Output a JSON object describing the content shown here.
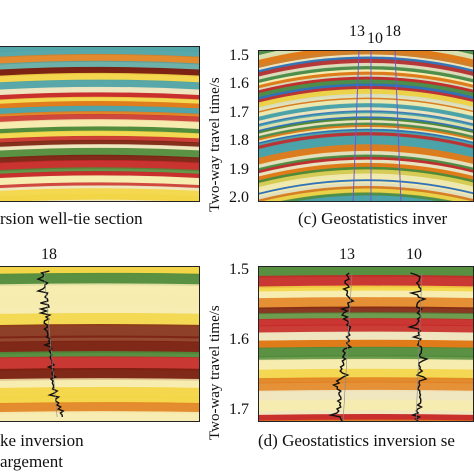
{
  "colors": {
    "red": "#c62828",
    "dark_red": "#7a1f10",
    "orange": "#e07b1a",
    "yellow": "#f3d544",
    "pale_yellow": "#f7ecb0",
    "green": "#4f8a3a",
    "teal": "#4ba3a9",
    "blue": "#2f6fb8",
    "cream": "#efe6c0",
    "log_black": "#111111",
    "well_line": "#6a5acd"
  },
  "panels": {
    "a": {
      "caption": "rsion well-tie section"
    },
    "b": {
      "well_label": "18",
      "caption_line1": "ke inversion",
      "caption_line2": "argement"
    },
    "c": {
      "caption": "(c) Geostatistics inver",
      "ylabel": "Two-way travel time/s",
      "yticks": [
        "1.5",
        "1.6",
        "1.7",
        "1.8",
        "1.9",
        "2.0"
      ],
      "well_labels": [
        "13",
        "10",
        "18"
      ]
    },
    "d": {
      "caption": "(d) Geostatistics inversion se",
      "ylabel": "Two-way travel time/s",
      "yticks": [
        "1.5",
        "1.6",
        "1.7"
      ],
      "well_labels": [
        "13",
        "10"
      ]
    }
  }
}
